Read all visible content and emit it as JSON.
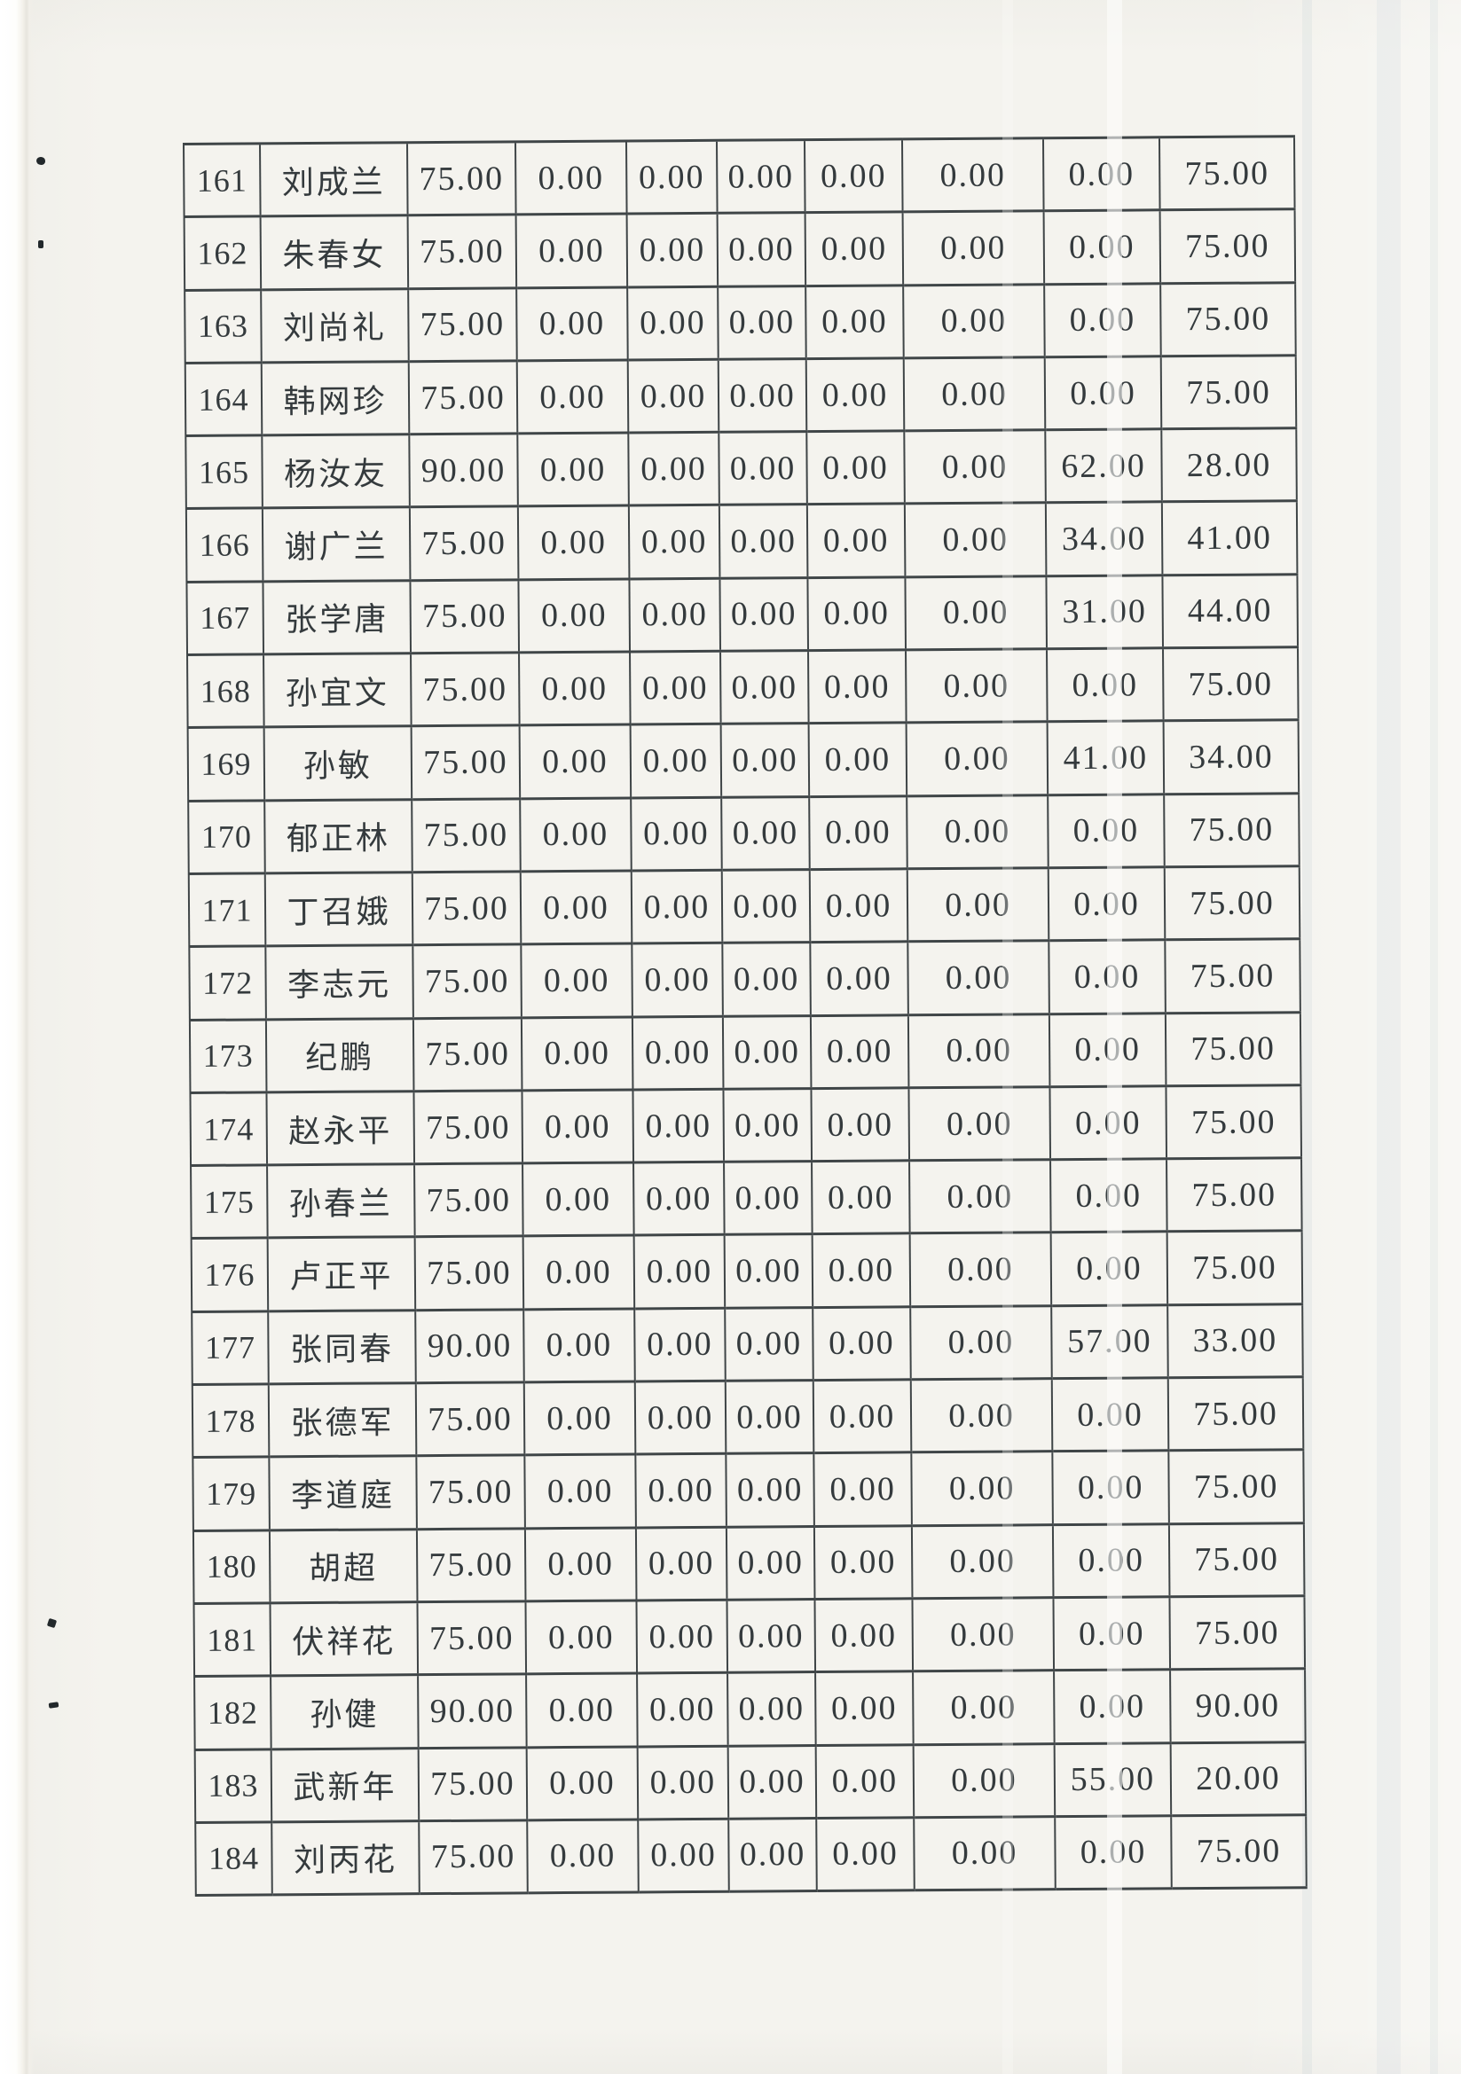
{
  "colors": {
    "paper": "#f4f3ee",
    "table_line": "#3f4547",
    "text": "#343a3d"
  },
  "table": {
    "columns": [
      "no",
      "name",
      "v1",
      "v2",
      "v3",
      "v4",
      "v5",
      "v6",
      "v7",
      "v8"
    ],
    "rows": [
      {
        "no": "161",
        "name": "刘成兰",
        "values": [
          "75.00",
          "0.00",
          "0.00",
          "0.00",
          "0.00",
          "0.00",
          "0.00",
          "75.00"
        ]
      },
      {
        "no": "162",
        "name": "朱春女",
        "values": [
          "75.00",
          "0.00",
          "0.00",
          "0.00",
          "0.00",
          "0.00",
          "0.00",
          "75.00"
        ]
      },
      {
        "no": "163",
        "name": "刘尚礼",
        "values": [
          "75.00",
          "0.00",
          "0.00",
          "0.00",
          "0.00",
          "0.00",
          "0.00",
          "75.00"
        ]
      },
      {
        "no": "164",
        "name": "韩网珍",
        "values": [
          "75.00",
          "0.00",
          "0.00",
          "0.00",
          "0.00",
          "0.00",
          "0.00",
          "75.00"
        ]
      },
      {
        "no": "165",
        "name": "杨汝友",
        "values": [
          "90.00",
          "0.00",
          "0.00",
          "0.00",
          "0.00",
          "0.00",
          "62.00",
          "28.00"
        ]
      },
      {
        "no": "166",
        "name": "谢广兰",
        "values": [
          "75.00",
          "0.00",
          "0.00",
          "0.00",
          "0.00",
          "0.00",
          "34.00",
          "41.00"
        ]
      },
      {
        "no": "167",
        "name": "张学唐",
        "values": [
          "75.00",
          "0.00",
          "0.00",
          "0.00",
          "0.00",
          "0.00",
          "31.00",
          "44.00"
        ]
      },
      {
        "no": "168",
        "name": "孙宜文",
        "values": [
          "75.00",
          "0.00",
          "0.00",
          "0.00",
          "0.00",
          "0.00",
          "0.00",
          "75.00"
        ]
      },
      {
        "no": "169",
        "name": "孙敏",
        "values": [
          "75.00",
          "0.00",
          "0.00",
          "0.00",
          "0.00",
          "0.00",
          "41.00",
          "34.00"
        ]
      },
      {
        "no": "170",
        "name": "郁正林",
        "values": [
          "75.00",
          "0.00",
          "0.00",
          "0.00",
          "0.00",
          "0.00",
          "0.00",
          "75.00"
        ]
      },
      {
        "no": "171",
        "name": "丁召娥",
        "values": [
          "75.00",
          "0.00",
          "0.00",
          "0.00",
          "0.00",
          "0.00",
          "0.00",
          "75.00"
        ]
      },
      {
        "no": "172",
        "name": "李志元",
        "values": [
          "75.00",
          "0.00",
          "0.00",
          "0.00",
          "0.00",
          "0.00",
          "0.00",
          "75.00"
        ]
      },
      {
        "no": "173",
        "name": "纪鹏",
        "values": [
          "75.00",
          "0.00",
          "0.00",
          "0.00",
          "0.00",
          "0.00",
          "0.00",
          "75.00"
        ]
      },
      {
        "no": "174",
        "name": "赵永平",
        "values": [
          "75.00",
          "0.00",
          "0.00",
          "0.00",
          "0.00",
          "0.00",
          "0.00",
          "75.00"
        ]
      },
      {
        "no": "175",
        "name": "孙春兰",
        "values": [
          "75.00",
          "0.00",
          "0.00",
          "0.00",
          "0.00",
          "0.00",
          "0.00",
          "75.00"
        ]
      },
      {
        "no": "176",
        "name": "卢正平",
        "values": [
          "75.00",
          "0.00",
          "0.00",
          "0.00",
          "0.00",
          "0.00",
          "0.00",
          "75.00"
        ]
      },
      {
        "no": "177",
        "name": "张同春",
        "values": [
          "90.00",
          "0.00",
          "0.00",
          "0.00",
          "0.00",
          "0.00",
          "57.00",
          "33.00"
        ]
      },
      {
        "no": "178",
        "name": "张德军",
        "values": [
          "75.00",
          "0.00",
          "0.00",
          "0.00",
          "0.00",
          "0.00",
          "0.00",
          "75.00"
        ]
      },
      {
        "no": "179",
        "name": "李道庭",
        "values": [
          "75.00",
          "0.00",
          "0.00",
          "0.00",
          "0.00",
          "0.00",
          "0.00",
          "75.00"
        ]
      },
      {
        "no": "180",
        "name": "胡超",
        "values": [
          "75.00",
          "0.00",
          "0.00",
          "0.00",
          "0.00",
          "0.00",
          "0.00",
          "75.00"
        ]
      },
      {
        "no": "181",
        "name": "伏祥花",
        "values": [
          "75.00",
          "0.00",
          "0.00",
          "0.00",
          "0.00",
          "0.00",
          "0.00",
          "75.00"
        ]
      },
      {
        "no": "182",
        "name": "孙健",
        "values": [
          "90.00",
          "0.00",
          "0.00",
          "0.00",
          "0.00",
          "0.00",
          "0.00",
          "90.00"
        ]
      },
      {
        "no": "183",
        "name": "武新年",
        "values": [
          "75.00",
          "0.00",
          "0.00",
          "0.00",
          "0.00",
          "0.00",
          "55.00",
          "20.00"
        ]
      },
      {
        "no": "184",
        "name": "刘丙花",
        "values": [
          "75.00",
          "0.00",
          "0.00",
          "0.00",
          "0.00",
          "0.00",
          "0.00",
          "75.00"
        ]
      }
    ]
  }
}
